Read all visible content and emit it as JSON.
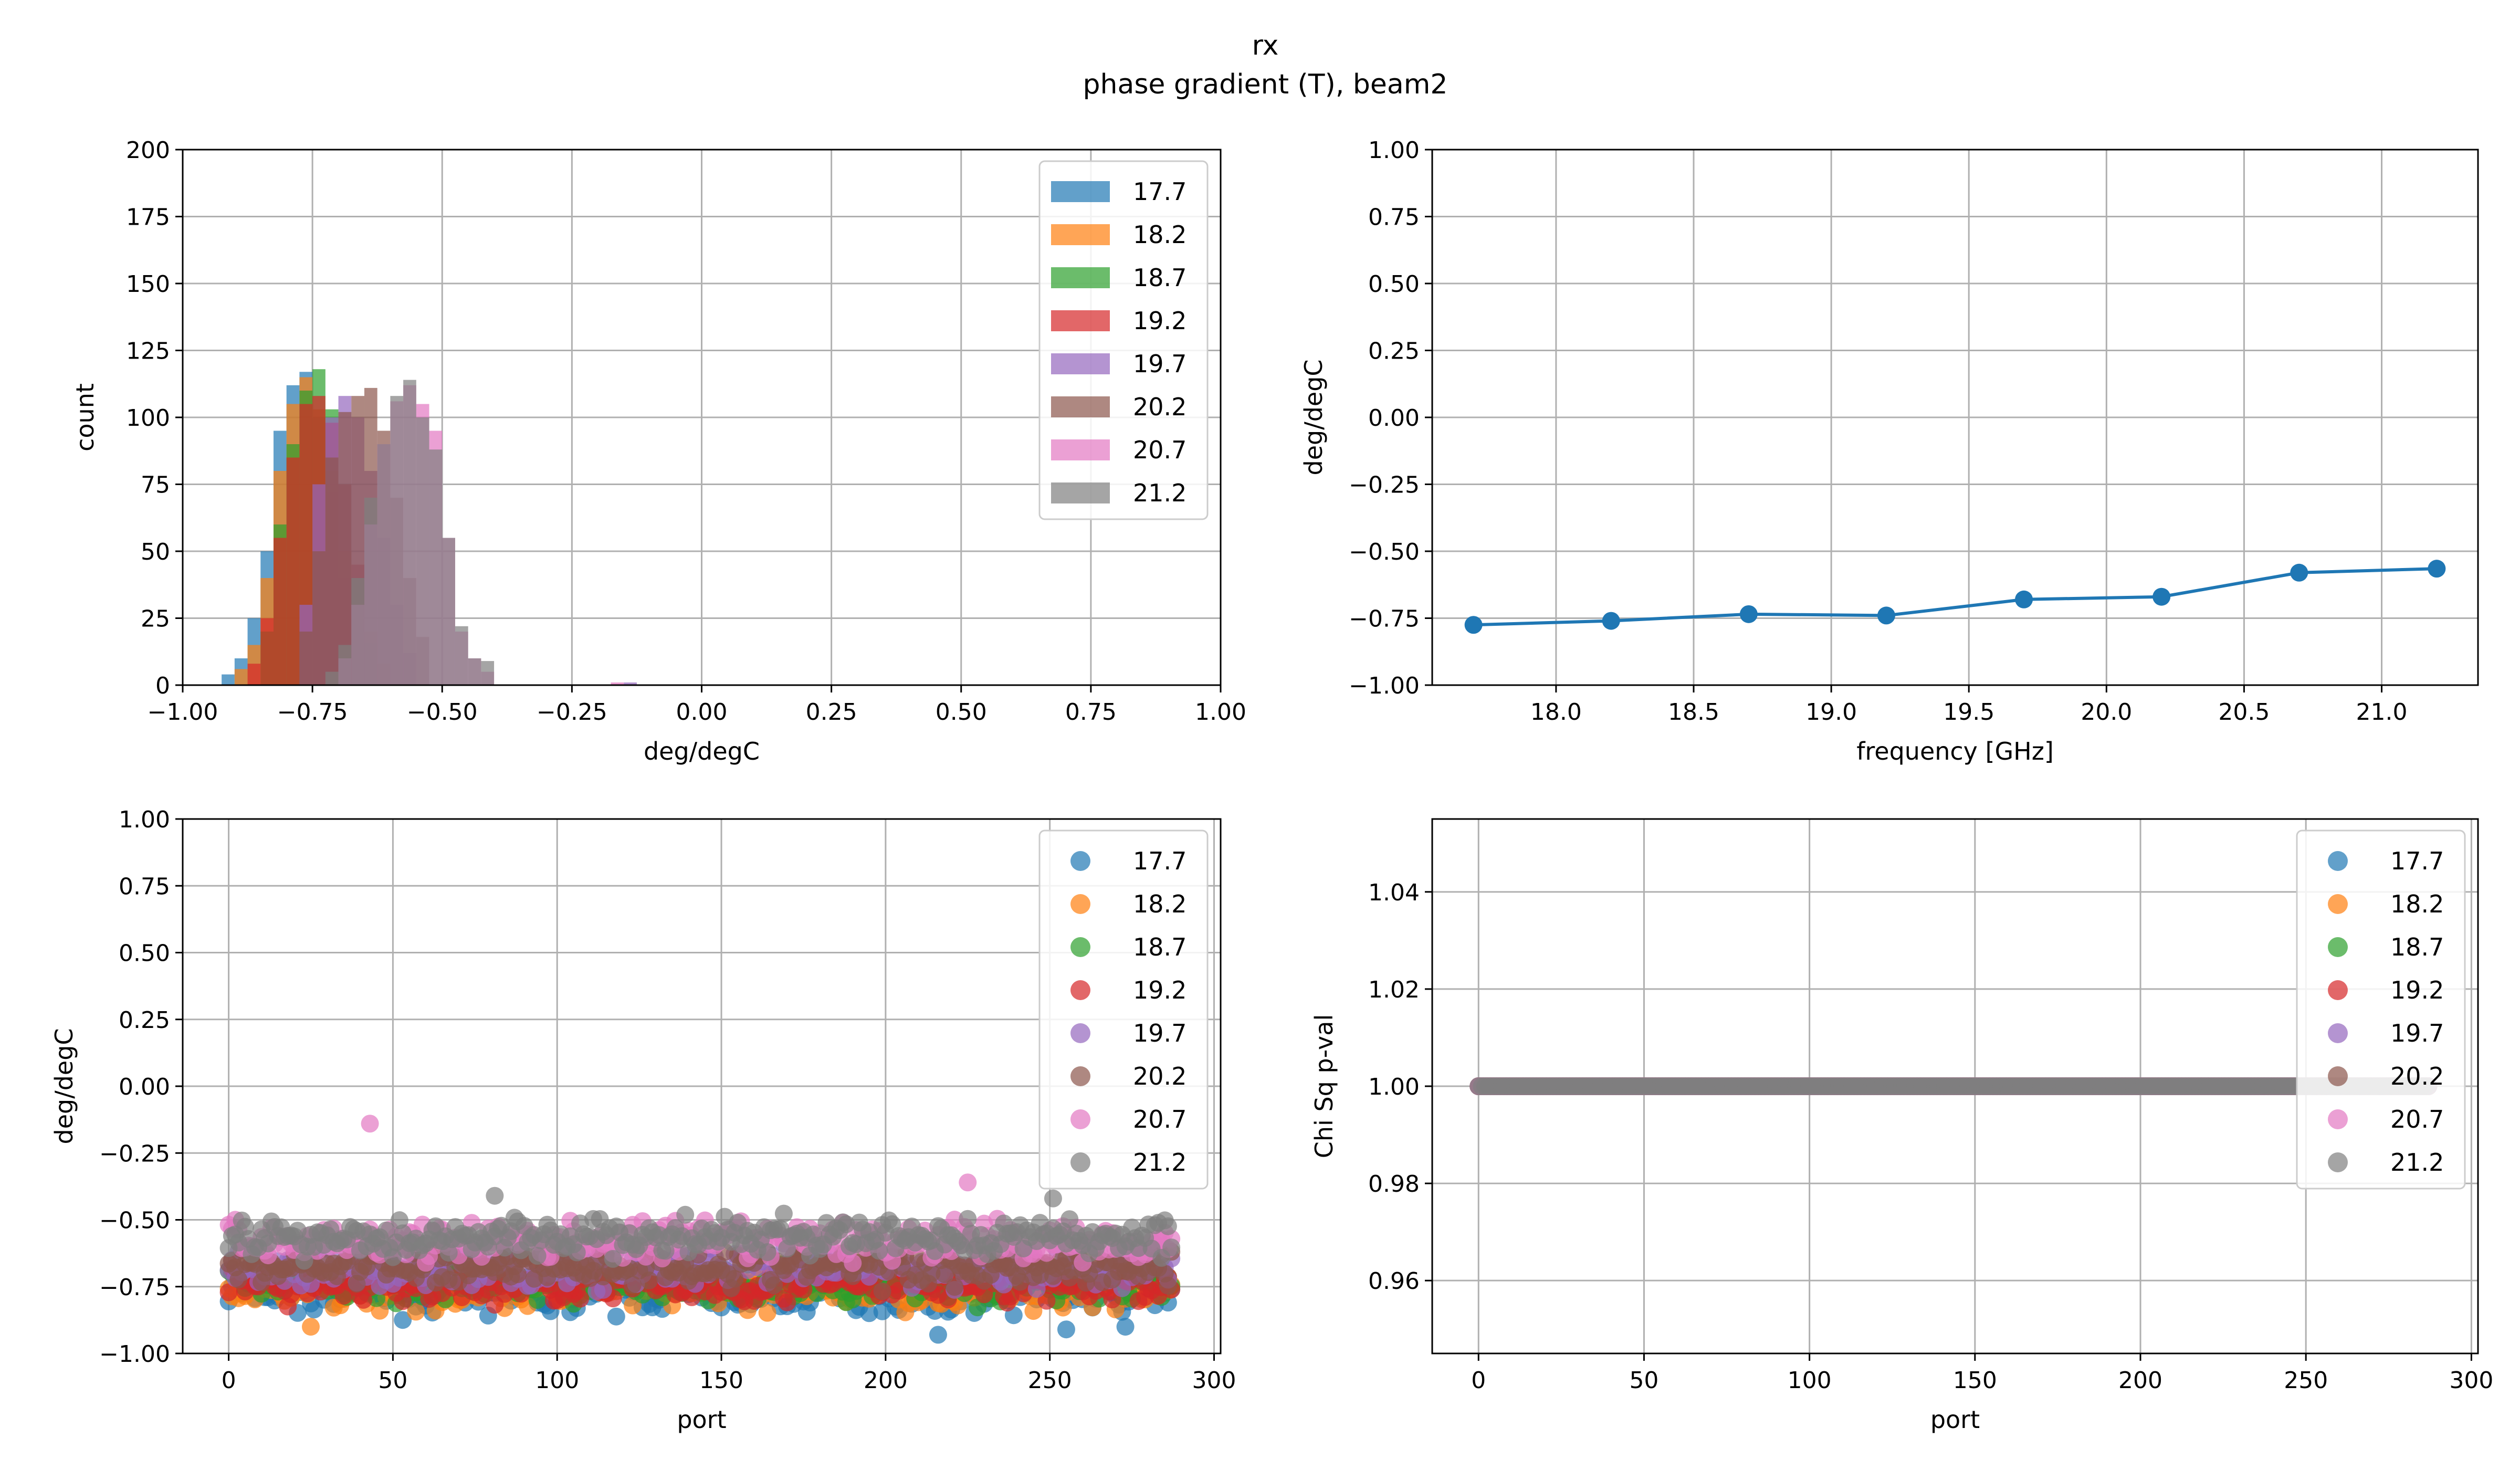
{
  "title": "rx",
  "subtitle": "phase gradient (T), beam2",
  "colors": {
    "series": [
      "#1f77b4",
      "#ff7f0e",
      "#2ca02c",
      "#d62728",
      "#9467bd",
      "#8c564b",
      "#e377c2",
      "#7f7f7f"
    ],
    "line": "#1f77b4",
    "grid": "#b0b0b0"
  },
  "legend_labels": [
    "17.7",
    "18.2",
    "18.7",
    "19.2",
    "19.7",
    "20.2",
    "20.7",
    "21.2"
  ],
  "chart_data": [
    {
      "id": "hist",
      "type": "bar",
      "subtype": "histogram",
      "xlabel": "deg/degC",
      "ylabel": "count",
      "xlim": [
        -1.0,
        1.0
      ],
      "ylim": [
        0,
        200
      ],
      "xticks": [
        "−1.00",
        "−0.75",
        "−0.50",
        "−0.25",
        "0.00",
        "0.25",
        "0.50",
        "0.75",
        "1.00"
      ],
      "yticks": [
        "0",
        "25",
        "50",
        "75",
        "100",
        "125",
        "150",
        "175",
        "200"
      ],
      "grid": true,
      "legend_position": "top-right",
      "bin_width": 0.025,
      "series": [
        {
          "name": "17.7",
          "bins": [
            [
              -0.925,
              4
            ],
            [
              -0.9,
              10
            ],
            [
              -0.875,
              25
            ],
            [
              -0.85,
              50
            ],
            [
              -0.825,
              95
            ],
            [
              -0.8,
              112
            ],
            [
              -0.775,
              117
            ],
            [
              -0.75,
              100
            ],
            [
              -0.725,
              72
            ],
            [
              -0.7,
              40
            ],
            [
              -0.675,
              18
            ],
            [
              -0.65,
              5
            ]
          ]
        },
        {
          "name": "18.2",
          "bins": [
            [
              -0.9,
              6
            ],
            [
              -0.875,
              15
            ],
            [
              -0.85,
              40
            ],
            [
              -0.825,
              80
            ],
            [
              -0.8,
              105
            ],
            [
              -0.775,
              115
            ],
            [
              -0.75,
              103
            ],
            [
              -0.725,
              80
            ],
            [
              -0.7,
              50
            ],
            [
              -0.675,
              25
            ],
            [
              -0.65,
              10
            ]
          ]
        },
        {
          "name": "18.7",
          "bins": [
            [
              -0.85,
              20
            ],
            [
              -0.825,
              60
            ],
            [
              -0.8,
              90
            ],
            [
              -0.775,
              110
            ],
            [
              -0.75,
              118
            ],
            [
              -0.725,
              103
            ],
            [
              -0.7,
              75
            ],
            [
              -0.675,
              40
            ],
            [
              -0.65,
              16
            ]
          ]
        },
        {
          "name": "19.2",
          "bins": [
            [
              -0.875,
              8
            ],
            [
              -0.85,
              25
            ],
            [
              -0.825,
              55
            ],
            [
              -0.8,
              85
            ],
            [
              -0.775,
              105
            ],
            [
              -0.75,
              108
            ],
            [
              -0.725,
              98
            ],
            [
              -0.7,
              75
            ],
            [
              -0.675,
              45
            ],
            [
              -0.65,
              20
            ],
            [
              -0.625,
              8
            ]
          ]
        },
        {
          "name": "19.7",
          "bins": [
            [
              -0.775,
              30
            ],
            [
              -0.75,
              75
            ],
            [
              -0.725,
              100
            ],
            [
              -0.7,
              108
            ],
            [
              -0.675,
              100
            ],
            [
              -0.65,
              80
            ],
            [
              -0.625,
              55
            ],
            [
              -0.6,
              30
            ],
            [
              -0.575,
              12
            ],
            [
              -0.15,
              1
            ]
          ]
        },
        {
          "name": "20.2",
          "bins": [
            [
              -0.775,
              20
            ],
            [
              -0.75,
              50
            ],
            [
              -0.725,
              85
            ],
            [
              -0.7,
              102
            ],
            [
              -0.675,
              108
            ],
            [
              -0.65,
              111
            ],
            [
              -0.625,
              95
            ],
            [
              -0.6,
              70
            ],
            [
              -0.575,
              40
            ],
            [
              -0.55,
              18
            ]
          ]
        },
        {
          "name": "20.7",
          "bins": [
            [
              -0.7,
              10
            ],
            [
              -0.675,
              30
            ],
            [
              -0.65,
              60
            ],
            [
              -0.625,
              90
            ],
            [
              -0.6,
              106
            ],
            [
              -0.575,
              112
            ],
            [
              -0.55,
              105
            ],
            [
              -0.525,
              95
            ],
            [
              -0.5,
              55
            ],
            [
              -0.475,
              20
            ],
            [
              -0.45,
              10
            ],
            [
              -0.425,
              5
            ],
            [
              -0.175,
              1
            ]
          ]
        },
        {
          "name": "21.2",
          "bins": [
            [
              -0.725,
              5
            ],
            [
              -0.7,
              15
            ],
            [
              -0.675,
              40
            ],
            [
              -0.65,
              70
            ],
            [
              -0.625,
              90
            ],
            [
              -0.6,
              108
            ],
            [
              -0.575,
              114
            ],
            [
              -0.55,
              100
            ],
            [
              -0.525,
              88
            ],
            [
              -0.5,
              55
            ],
            [
              -0.475,
              22
            ],
            [
              -0.45,
              10
            ],
            [
              -0.425,
              9
            ]
          ]
        }
      ]
    },
    {
      "id": "line",
      "type": "line",
      "xlabel": "frequency [GHz]",
      "ylabel": "deg/degC",
      "xlim": [
        17.55,
        21.35
      ],
      "ylim": [
        -1.0,
        1.0
      ],
      "xticks": [
        [
          "18.0",
          18.0
        ],
        [
          "18.5",
          18.5
        ],
        [
          "19.0",
          19.0
        ],
        [
          "19.5",
          19.5
        ],
        [
          "20.0",
          20.0
        ],
        [
          "20.5",
          20.5
        ],
        [
          "21.0",
          21.0
        ]
      ],
      "yticks": [
        "−1.00",
        "−0.75",
        "−0.50",
        "−0.25",
        "0.00",
        "0.25",
        "0.50",
        "0.75",
        "1.00"
      ],
      "grid": true,
      "x": [
        17.7,
        18.2,
        18.7,
        19.2,
        19.7,
        20.2,
        20.7,
        21.2
      ],
      "y": [
        -0.775,
        -0.76,
        -0.735,
        -0.74,
        -0.68,
        -0.67,
        -0.58,
        -0.565
      ]
    },
    {
      "id": "scatter",
      "type": "scatter",
      "xlabel": "port",
      "ylabel": "deg/degC",
      "xlim": [
        -14,
        302
      ],
      "ylim": [
        -1.0,
        1.0
      ],
      "xticks": [
        [
          "0",
          0
        ],
        [
          "50",
          50
        ],
        [
          "100",
          100
        ],
        [
          "150",
          150
        ],
        [
          "200",
          200
        ],
        [
          "250",
          250
        ],
        [
          "300",
          300
        ]
      ],
      "yticks": [
        "−1.00",
        "−0.75",
        "−0.50",
        "−0.25",
        "0.00",
        "0.25",
        "0.50",
        "0.75",
        "1.00"
      ],
      "grid": true,
      "legend_position": "top-right",
      "n_ports": 288,
      "series": [
        {
          "name": "17.7",
          "mean": -0.77,
          "spread": 0.05
        },
        {
          "name": "18.2",
          "mean": -0.76,
          "spread": 0.05
        },
        {
          "name": "18.7",
          "mean": -0.74,
          "spread": 0.045
        },
        {
          "name": "19.2",
          "mean": -0.74,
          "spread": 0.05
        },
        {
          "name": "19.7",
          "mean": -0.68,
          "spread": 0.05
        },
        {
          "name": "20.2",
          "mean": -0.67,
          "spread": 0.05
        },
        {
          "name": "20.7",
          "mean": -0.58,
          "spread": 0.05
        },
        {
          "name": "21.2",
          "mean": -0.565,
          "spread": 0.05
        }
      ],
      "outliers": [
        {
          "series": "17.7",
          "x": 216,
          "y": -0.93
        },
        {
          "series": "17.7",
          "x": 255,
          "y": -0.91
        },
        {
          "series": "17.7",
          "x": 273,
          "y": -0.9
        },
        {
          "series": "18.2",
          "x": 25,
          "y": -0.9
        },
        {
          "series": "20.7",
          "x": 43,
          "y": -0.14
        },
        {
          "series": "20.7",
          "x": 225,
          "y": -0.36
        },
        {
          "series": "21.2",
          "x": 81,
          "y": -0.41
        },
        {
          "series": "21.2",
          "x": 251,
          "y": -0.42
        }
      ]
    },
    {
      "id": "pval",
      "type": "scatter",
      "xlabel": "port",
      "ylabel": "Chi Sq p-val",
      "xlim": [
        -14,
        302
      ],
      "ylim": [
        0.945,
        1.055
      ],
      "xticks": [
        [
          "0",
          0
        ],
        [
          "50",
          50
        ],
        [
          "100",
          100
        ],
        [
          "150",
          150
        ],
        [
          "200",
          200
        ],
        [
          "250",
          250
        ],
        [
          "300",
          300
        ]
      ],
      "yticks": [
        [
          "0.96",
          0.96
        ],
        [
          "0.98",
          0.98
        ],
        [
          "1.00",
          1.0
        ],
        [
          "1.02",
          1.02
        ],
        [
          "1.04",
          1.04
        ]
      ],
      "grid": true,
      "legend_position": "top-right",
      "n_ports": 288,
      "series_value": 1.0
    }
  ]
}
